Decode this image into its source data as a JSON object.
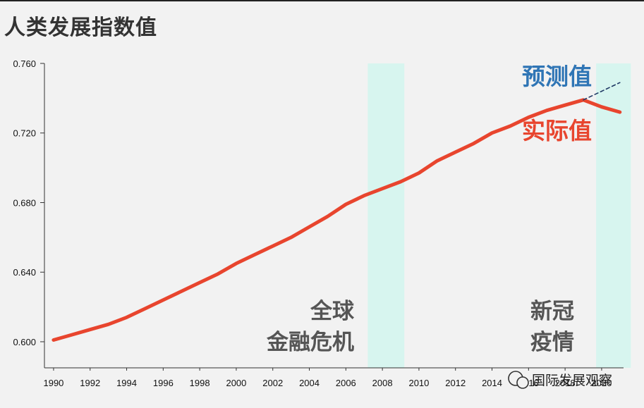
{
  "chart_data": {
    "type": "line",
    "title": "人类发展指数值",
    "xlabel": "",
    "ylabel": "",
    "xlim": [
      1989.5,
      2021.2
    ],
    "ylim": [
      0.585,
      0.76
    ],
    "x_ticks": [
      "1990",
      "1992",
      "1994",
      "1996",
      "1998",
      "2000",
      "2002",
      "2004",
      "2006",
      "2008",
      "2010",
      "2012",
      "2014",
      "2016",
      "2018",
      "2020"
    ],
    "y_ticks": [
      "0.600",
      "0.640",
      "0.680",
      "0.720",
      "0.760"
    ],
    "grid": false,
    "series": [
      {
        "name": "实际值",
        "color": "#e8452e",
        "x": [
          1990,
          1991,
          1992,
          1993,
          1994,
          1995,
          1996,
          1997,
          1998,
          1999,
          2000,
          2001,
          2002,
          2003,
          2004,
          2005,
          2006,
          2007,
          2008,
          2009,
          2010,
          2011,
          2012,
          2013,
          2014,
          2015,
          2016,
          2017,
          2018,
          2019,
          2020,
          2021
        ],
        "values": [
          0.601,
          0.604,
          0.607,
          0.61,
          0.614,
          0.619,
          0.624,
          0.629,
          0.634,
          0.639,
          0.645,
          0.65,
          0.655,
          0.66,
          0.666,
          0.672,
          0.679,
          0.684,
          0.688,
          0.692,
          0.697,
          0.704,
          0.709,
          0.714,
          0.72,
          0.724,
          0.729,
          0.733,
          0.736,
          0.739,
          0.735,
          0.732
        ]
      },
      {
        "name": "预测值",
        "color": "#1f3864",
        "dashed": true,
        "x": [
          2019,
          2021
        ],
        "values": [
          0.739,
          0.749
        ]
      }
    ],
    "shaded_periods": [
      {
        "x0": 2007.2,
        "x1": 2009.2,
        "label_lines": [
          "全球",
          "金融危机"
        ]
      },
      {
        "x0": 2019.7,
        "x1": 2021.6,
        "label_lines": [
          "新冠",
          "疫情"
        ]
      }
    ],
    "annotations": [
      {
        "text": "预测值",
        "color": "#2f75b5"
      },
      {
        "text": "实际值",
        "color": "#e8452e"
      }
    ],
    "shade_color": "#d7f5ef"
  },
  "watermark": {
    "text": "国际发展观察"
  }
}
